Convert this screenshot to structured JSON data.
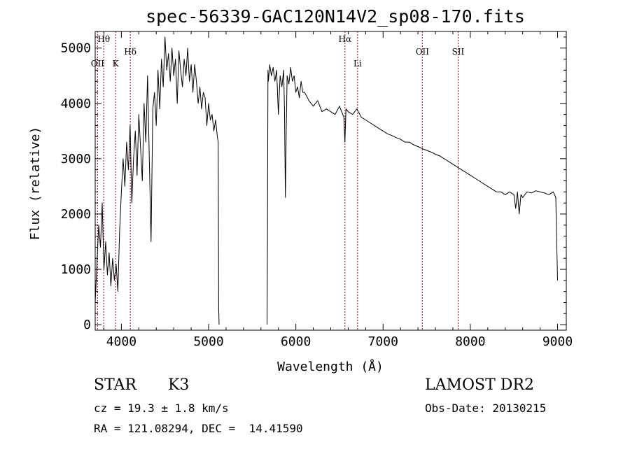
{
  "chart_data": {
    "type": "line",
    "title": "spec-56339-GAC120N14V2_sp08-170.fits",
    "xlabel": "Wavelength (Å)",
    "ylabel": "Flux (relative)",
    "xlim": [
      3700,
      9100
    ],
    "ylim": [
      -100,
      5300
    ],
    "xticks": [
      4000,
      5000,
      6000,
      7000,
      8000,
      9000
    ],
    "yticks": [
      0,
      1000,
      2000,
      3000,
      4000,
      5000
    ],
    "grid": false,
    "line_color": "#000000",
    "marker_color": "#b00000",
    "lines": [
      {
        "label": "Hθ",
        "x": 3798,
        "row": 0
      },
      {
        "label": "OII",
        "x": 3727,
        "row": 2
      },
      {
        "label": "K",
        "x": 3934,
        "row": 2
      },
      {
        "label": "Hδ",
        "x": 4102,
        "row": 1
      },
      {
        "label": "Hα",
        "x": 6563,
        "row": 0
      },
      {
        "label": "Li",
        "x": 6708,
        "row": 2
      },
      {
        "label": "OII",
        "x": 7450,
        "row": 1
      },
      {
        "label": "SII",
        "x": 7860,
        "row": 1
      }
    ],
    "series": [
      {
        "x": [
          3700,
          3720,
          3740,
          3760,
          3780,
          3800,
          3820,
          3840,
          3860,
          3880,
          3900,
          3920,
          3940,
          3960,
          3980,
          4000,
          4020,
          4040,
          4060,
          4080,
          4100,
          4120,
          4140,
          4160,
          4180,
          4200,
          4220,
          4240,
          4260,
          4280,
          4300,
          4320,
          4340,
          4360,
          4380,
          4400,
          4420,
          4440,
          4460,
          4480,
          4500,
          4520,
          4540,
          4560,
          4580,
          4600,
          4620,
          4640,
          4660,
          4680,
          4700,
          4720,
          4740,
          4760,
          4780,
          4800,
          4820,
          4840,
          4860,
          4880,
          4900,
          4920,
          4940,
          4960,
          4980,
          5000,
          5020,
          5040,
          5060,
          5080,
          5100,
          5110,
          5115,
          5120
        ],
        "y": [
          400,
          1100,
          1800,
          1400,
          2200,
          1000,
          1500,
          900,
          1300,
          700,
          1200,
          800,
          1100,
          600,
          1700,
          2400,
          3000,
          2500,
          3300,
          2800,
          3600,
          2200,
          3000,
          3500,
          2700,
          3800,
          3200,
          2600,
          4000,
          3300,
          4500,
          3000,
          1500,
          3900,
          4200,
          3600,
          4600,
          3900,
          4800,
          4300,
          5200,
          4600,
          4900,
          4400,
          5000,
          4500,
          4800,
          4000,
          4950,
          4600,
          4300,
          4800,
          4500,
          5000,
          4400,
          4700,
          4200,
          4700,
          4400,
          4000,
          4300,
          3900,
          4200,
          4100,
          3600,
          4000,
          3700,
          3800,
          3500,
          3700,
          3400,
          3300,
          300,
          0
        ]
      },
      {
        "x": [
          5670,
          5675,
          5680,
          5685,
          5700,
          5720,
          5740,
          5760,
          5780,
          5800,
          5820,
          5840,
          5860,
          5870,
          5880,
          5890,
          5900,
          5920,
          5940,
          5960,
          5980,
          6000,
          6020,
          6040,
          6060,
          6080,
          6100,
          6150,
          6200,
          6250,
          6300,
          6350,
          6400,
          6450,
          6500,
          6550,
          6562,
          6575,
          6600,
          6650,
          6700,
          6750,
          6800,
          6850,
          6900,
          6950,
          7000,
          7050,
          7100,
          7150,
          7200,
          7250,
          7300,
          7350,
          7400,
          7450,
          7500,
          7550,
          7600,
          7650,
          7700,
          7750,
          7800,
          7850,
          7900,
          7950,
          8000,
          8050,
          8100,
          8150,
          8200,
          8250,
          8300,
          8350,
          8400,
          8450,
          8500,
          8520,
          8540,
          8560,
          8580,
          8600,
          8650,
          8700,
          8750,
          8800,
          8850,
          8900,
          8950,
          8980,
          9000
        ],
        "y": [
          0,
          1500,
          4600,
          4400,
          4700,
          4500,
          4650,
          4400,
          4600,
          3800,
          4500,
          4300,
          4600,
          3900,
          2300,
          3500,
          4500,
          4350,
          4650,
          4400,
          4500,
          4200,
          4300,
          4100,
          4400,
          4200,
          4200,
          4050,
          3950,
          4050,
          3850,
          3900,
          3850,
          3800,
          3950,
          3750,
          3300,
          3900,
          3850,
          3800,
          3900,
          3750,
          3700,
          3650,
          3600,
          3550,
          3500,
          3450,
          3420,
          3380,
          3350,
          3300,
          3300,
          3250,
          3220,
          3180,
          3150,
          3120,
          3080,
          3050,
          3000,
          2950,
          2900,
          2850,
          2800,
          2750,
          2700,
          2650,
          2600,
          2550,
          2500,
          2450,
          2400,
          2400,
          2350,
          2400,
          2350,
          2100,
          2400,
          2000,
          2350,
          2300,
          2400,
          2380,
          2420,
          2400,
          2380,
          2350,
          2400,
          2300,
          800
        ]
      }
    ]
  },
  "info": {
    "class": "STAR",
    "subclass": "K3",
    "survey": "LAMOST DR2",
    "cz": "cz = 19.3 ± 1.8 km/s",
    "obsdate": "Obs-Date: 20130215",
    "radec": "RA = 121.08294, DEC =  14.41590"
  }
}
